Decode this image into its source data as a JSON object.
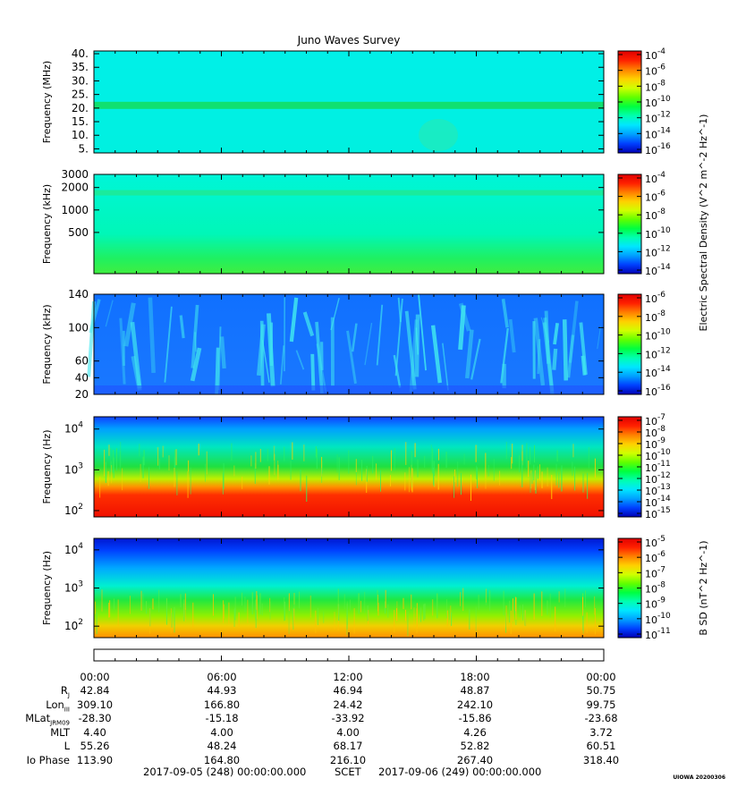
{
  "title": "Juno Waves Survey",
  "colors": {
    "spectrum": [
      "#0000b4",
      "#0040ff",
      "#00a0ff",
      "#00e6ff",
      "#00ffb0",
      "#00ff40",
      "#60ff00",
      "#d0ff00",
      "#ffd000",
      "#ff8000",
      "#ff2000",
      "#e00000"
    ]
  },
  "chart_data": [
    {
      "type": "heatmap",
      "ylabel": "Frequency (MHz)",
      "yticks": [
        "40.",
        "35.",
        "30.",
        "25.",
        "20.",
        "15.",
        "10.",
        "5."
      ],
      "ylim": [
        3.5,
        41
      ],
      "colorbar": {
        "ticks": [
          "-4",
          "-6",
          "-8",
          "-10",
          "-12",
          "-14",
          "-16"
        ],
        "tick_prefix": "10"
      },
      "background": "cyan",
      "features": [
        "green band near 21 MHz"
      ]
    },
    {
      "type": "heatmap",
      "ylabel": "Frequency (kHz)",
      "yticks": [
        "3000",
        "2000",
        "1000",
        "500"
      ],
      "ylim": [
        140,
        3000
      ],
      "colorbar": {
        "ticks": [
          "-4",
          "-6",
          "-8",
          "-10",
          "-12",
          "-14"
        ],
        "tick_prefix": "10"
      },
      "background": "cyan to green",
      "features": [
        "green band near 1700 kHz",
        "green at low frequencies"
      ]
    },
    {
      "type": "heatmap",
      "ylabel": "Frequency (kHz)",
      "yticks": [
        "140",
        "100",
        "60",
        "40",
        "20"
      ],
      "ylim": [
        20,
        140
      ],
      "colorbar": {
        "ticks": [
          "-6",
          "-8",
          "-10",
          "-12",
          "-14",
          "-16"
        ],
        "tick_prefix": "10"
      },
      "shared_colorbar_label": "Electric Spectral Density (V^2 m^-2 Hz^-1)",
      "background": "blue",
      "features": [
        "cyan emission streaks"
      ]
    },
    {
      "type": "heatmap",
      "ylabel": "Frequency (Hz)",
      "yticks": [
        "10^4",
        "10^3",
        "10^2"
      ],
      "ylim": [
        70,
        20000
      ],
      "colorbar": {
        "ticks": [
          "-7",
          "-8",
          "-9",
          "-10",
          "-11",
          "-12",
          "-13",
          "-14",
          "-15"
        ],
        "tick_prefix": "10"
      },
      "background": "blue top, green middle, red/orange bottom"
    },
    {
      "type": "heatmap",
      "ylabel": "Frequency (Hz)",
      "yticks": [
        "10^4",
        "10^3",
        "10^2"
      ],
      "ylim": [
        50,
        20000
      ],
      "colorbar": {
        "ticks": [
          "-5",
          "-6",
          "-7",
          "-8",
          "-9",
          "-10",
          "-11"
        ],
        "tick_prefix": "10",
        "label": "B SD (nT^2 Hz^-1)"
      },
      "background": "blue top, green middle, yellow/orange bottom"
    }
  ],
  "ephemeris": {
    "labels": [
      "R",
      "Lon",
      "MLat",
      "MLT",
      "L",
      "Io Phase"
    ],
    "label_subscripts": [
      "J",
      "III",
      "JRM09",
      "",
      "",
      ""
    ],
    "times": [
      "00:00",
      "06:00",
      "12:00",
      "18:00",
      "00:00"
    ],
    "rows": [
      [
        "42.84",
        "44.93",
        "46.94",
        "48.87",
        "50.75"
      ],
      [
        "309.10",
        "166.80",
        "24.42",
        "242.10",
        "99.75"
      ],
      [
        "-28.30",
        "-15.18",
        "-33.92",
        "-15.86",
        "-23.68"
      ],
      [
        "4.40",
        "4.00",
        "4.00",
        "4.26",
        "3.72"
      ],
      [
        "55.26",
        "48.24",
        "68.17",
        "52.82",
        "60.51"
      ],
      [
        "113.90",
        "164.80",
        "216.10",
        "267.40",
        "318.40"
      ]
    ]
  },
  "footer": {
    "start": "2017-09-05 (248) 00:00:00.000",
    "mid": "SCET",
    "end": "2017-09-06 (249) 00:00:00.000"
  },
  "stamp": "UIOWA 20200306"
}
